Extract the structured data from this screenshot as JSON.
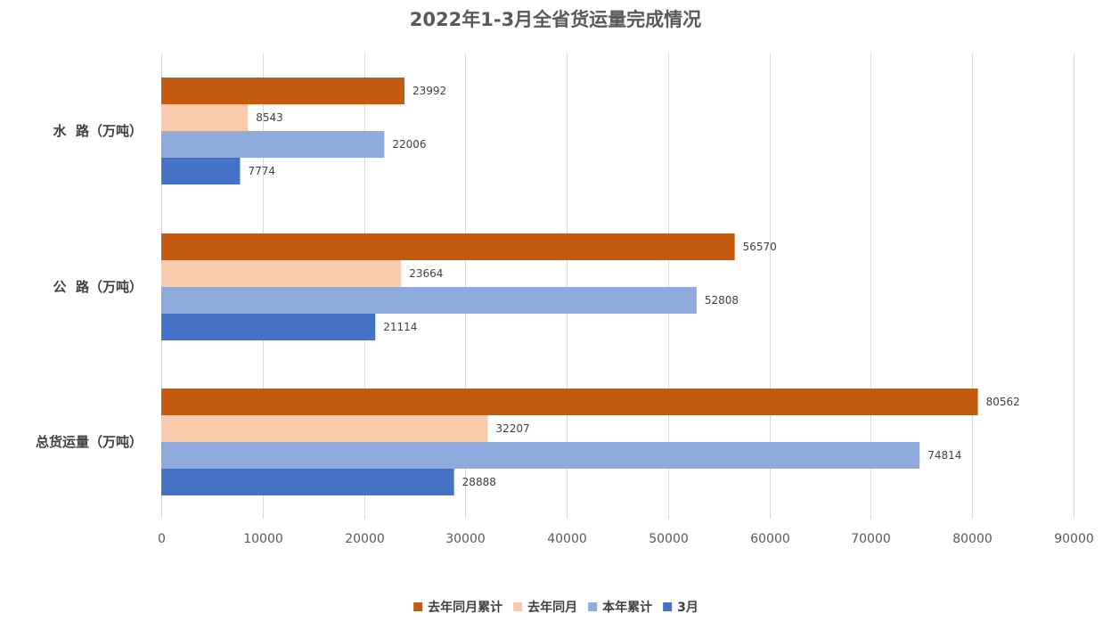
{
  "chart_data": {
    "type": "bar",
    "orientation": "horizontal",
    "title": "2022年1-3月全省货运量完成情况",
    "categories": [
      "总货运量（万吨）",
      "公  路（万吨）",
      "水  路（万吨）"
    ],
    "series": [
      {
        "name": "去年同月累计",
        "color": "#C55A11",
        "values": [
          80562,
          56570,
          23992
        ]
      },
      {
        "name": "去年同月",
        "color": "#F8CBAD",
        "values": [
          32207,
          23664,
          8543
        ]
      },
      {
        "name": "本年累计",
        "color": "#8FAADC",
        "values": [
          74814,
          52808,
          22006
        ]
      },
      {
        "name": "3月",
        "color": "#4472C4",
        "values": [
          28888,
          21114,
          7774
        ]
      }
    ],
    "xlim": [
      0,
      90000
    ],
    "xticks": [
      0,
      10000,
      20000,
      30000,
      40000,
      50000,
      60000,
      70000,
      80000,
      90000
    ],
    "grid": true,
    "legend_position": "bottom",
    "data_labels": true
  }
}
